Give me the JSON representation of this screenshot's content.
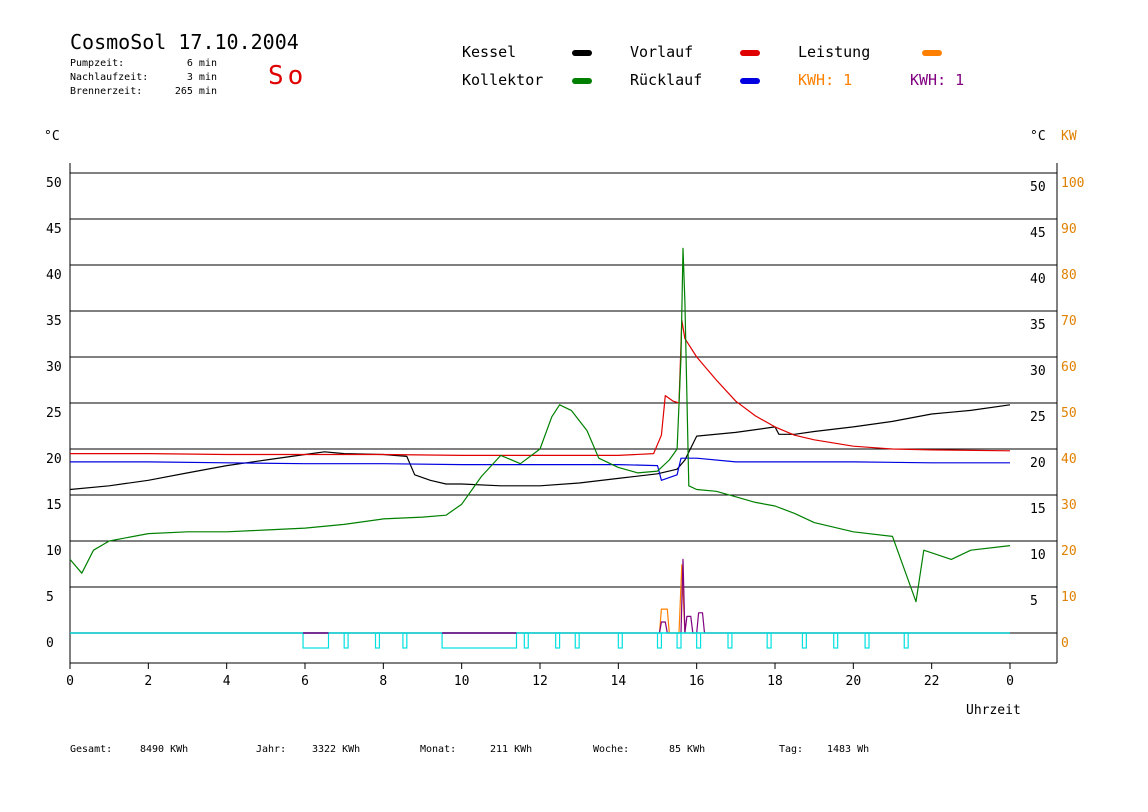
{
  "header": {
    "title": "CosmoSol 17.10.2004",
    "day": "So",
    "stats": [
      {
        "label": "Pumpzeit:",
        "value": "6 min"
      },
      {
        "label": "Nachlaufzeit:",
        "value": "3 min"
      },
      {
        "label": "Brennerzeit:",
        "value": "265 min"
      }
    ]
  },
  "legend": {
    "kessel": "Kessel",
    "kollektor": "Kollektor",
    "vorlauf": "Vorlauf",
    "ruecklauf": "Rücklauf",
    "leistung": "Leistung",
    "kwh_orange": "KWH: 1",
    "kwh_purple": "KWH: 1"
  },
  "colors": {
    "kessel": "#000000",
    "kollektor": "#008000",
    "vorlauf": "#e00000",
    "ruecklauf": "#0000e0",
    "leistung": "#ff8000",
    "kwh_purple": "#800080",
    "pump": "#00e0e0"
  },
  "footer": [
    {
      "label": "Gesamt:",
      "value": "8490 KWh"
    },
    {
      "label": "Jahr:",
      "value": "3322 KWh"
    },
    {
      "label": "Monat:",
      "value": "211 KWh"
    },
    {
      "label": "Woche:",
      "value": "85 KWh"
    },
    {
      "label": "Tag:",
      "value": "1483 Wh"
    }
  ],
  "chart_data": {
    "type": "line",
    "title": "CosmoSol 17.10.2004",
    "xlabel": "Uhrzeit",
    "ylabel_left": "°C",
    "ylabel_right": "°C",
    "ylabel_right2": "KW",
    "xlim": [
      0,
      24
    ],
    "ylim": [
      0,
      50
    ],
    "y2lim": [
      0,
      100
    ],
    "x_ticks": [
      "0",
      "2",
      "4",
      "6",
      "8",
      "10",
      "12",
      "14",
      "16",
      "18",
      "20",
      "22",
      "0"
    ],
    "y_ticks": [
      0,
      5,
      10,
      15,
      20,
      25,
      30,
      35,
      40,
      45,
      50
    ],
    "y2_ticks": [
      0,
      10,
      20,
      30,
      40,
      50,
      60,
      70,
      80,
      90,
      100
    ],
    "grid": true,
    "series": [
      {
        "name": "Kessel",
        "color": "#000000",
        "points": [
          [
            0,
            15.6
          ],
          [
            1,
            16
          ],
          [
            2,
            16.6
          ],
          [
            3,
            17.4
          ],
          [
            4,
            18.2
          ],
          [
            5,
            18.8
          ],
          [
            6,
            19.4
          ],
          [
            6.5,
            19.7
          ],
          [
            7,
            19.5
          ],
          [
            8,
            19.4
          ],
          [
            8.6,
            19.2
          ],
          [
            8.8,
            17.2
          ],
          [
            9.2,
            16.6
          ],
          [
            9.6,
            16.2
          ],
          [
            10,
            16.2
          ],
          [
            11,
            16
          ],
          [
            12,
            16
          ],
          [
            13,
            16.3
          ],
          [
            14,
            16.8
          ],
          [
            15,
            17.3
          ],
          [
            15.5,
            17.8
          ],
          [
            15.7,
            18.8
          ],
          [
            16,
            21.4
          ],
          [
            17,
            21.8
          ],
          [
            18,
            22.4
          ],
          [
            18.1,
            21.6
          ],
          [
            18.5,
            21.6
          ],
          [
            19,
            21.9
          ],
          [
            20,
            22.4
          ],
          [
            21,
            23
          ],
          [
            22,
            23.8
          ],
          [
            22.5,
            24
          ],
          [
            23,
            24.2
          ],
          [
            24,
            24.8
          ]
        ]
      },
      {
        "name": "Vorlauf",
        "color": "#e00000",
        "points": [
          [
            0,
            19.5
          ],
          [
            2,
            19.5
          ],
          [
            4,
            19.4
          ],
          [
            6,
            19.4
          ],
          [
            8,
            19.4
          ],
          [
            10,
            19.3
          ],
          [
            12,
            19.3
          ],
          [
            14,
            19.3
          ],
          [
            14.9,
            19.5
          ],
          [
            15.1,
            21.5
          ],
          [
            15.2,
            25.8
          ],
          [
            15.4,
            25.2
          ],
          [
            15.55,
            25
          ],
          [
            15.62,
            34
          ],
          [
            15.7,
            32
          ],
          [
            16,
            30
          ],
          [
            16.5,
            27.5
          ],
          [
            17,
            25.2
          ],
          [
            17.5,
            23.6
          ],
          [
            18,
            22.4
          ],
          [
            18.5,
            21.5
          ],
          [
            19,
            21
          ],
          [
            20,
            20.3
          ],
          [
            21,
            20
          ],
          [
            22,
            19.9
          ],
          [
            24,
            19.8
          ]
        ]
      },
      {
        "name": "Rücklauf",
        "color": "#0000e0",
        "points": [
          [
            0,
            18.6
          ],
          [
            2,
            18.6
          ],
          [
            4,
            18.5
          ],
          [
            6,
            18.4
          ],
          [
            8,
            18.4
          ],
          [
            10,
            18.3
          ],
          [
            12,
            18.3
          ],
          [
            14,
            18.3
          ],
          [
            15,
            18.2
          ],
          [
            15.1,
            16.6
          ],
          [
            15.5,
            17.2
          ],
          [
            15.6,
            19
          ],
          [
            16,
            19
          ],
          [
            17,
            18.6
          ],
          [
            18,
            18.6
          ],
          [
            20,
            18.6
          ],
          [
            22,
            18.5
          ],
          [
            24,
            18.5
          ]
        ]
      },
      {
        "name": "Kollektor",
        "color": "#008000",
        "points": [
          [
            0,
            8
          ],
          [
            0.3,
            6.5
          ],
          [
            0.6,
            9
          ],
          [
            1,
            10
          ],
          [
            2,
            10.8
          ],
          [
            3,
            11
          ],
          [
            4,
            11
          ],
          [
            5,
            11.2
          ],
          [
            6,
            11.4
          ],
          [
            7,
            11.8
          ],
          [
            8,
            12.4
          ],
          [
            9,
            12.6
          ],
          [
            9.6,
            12.8
          ],
          [
            10,
            14
          ],
          [
            10.5,
            17
          ],
          [
            11,
            19.3
          ],
          [
            11.5,
            18.4
          ],
          [
            12,
            20
          ],
          [
            12.3,
            23.5
          ],
          [
            12.5,
            24.8
          ],
          [
            12.8,
            24.2
          ],
          [
            13.2,
            22
          ],
          [
            13.5,
            19
          ],
          [
            14,
            18
          ],
          [
            14.5,
            17.4
          ],
          [
            15,
            17.6
          ],
          [
            15.3,
            18.8
          ],
          [
            15.5,
            20
          ],
          [
            15.6,
            30
          ],
          [
            15.65,
            41.8
          ],
          [
            15.7,
            36
          ],
          [
            15.8,
            16
          ],
          [
            16,
            15.6
          ],
          [
            16.5,
            15.4
          ],
          [
            17,
            14.8
          ],
          [
            17.5,
            14.2
          ],
          [
            18,
            13.8
          ],
          [
            18.5,
            13
          ],
          [
            19,
            12
          ],
          [
            20,
            11
          ],
          [
            21,
            10.5
          ],
          [
            21.6,
            3.4
          ],
          [
            21.8,
            9
          ],
          [
            22.5,
            8
          ],
          [
            23,
            9
          ],
          [
            24,
            9.5
          ]
        ]
      },
      {
        "name": "Leistung",
        "color": "#ff8000",
        "points": [
          [
            0,
            0
          ],
          [
            15.05,
            0
          ],
          [
            15.1,
            2.6
          ],
          [
            15.25,
            2.6
          ],
          [
            15.3,
            0
          ],
          [
            15.55,
            0
          ],
          [
            15.62,
            7.4
          ],
          [
            15.7,
            0
          ],
          [
            24,
            0
          ]
        ]
      },
      {
        "name": "KWH",
        "color": "#800080",
        "points": [
          [
            0,
            0
          ],
          [
            15.05,
            0
          ],
          [
            15.1,
            1.2
          ],
          [
            15.2,
            1.2
          ],
          [
            15.25,
            0
          ],
          [
            15.6,
            0
          ],
          [
            15.65,
            8
          ],
          [
            15.7,
            0
          ],
          [
            15.75,
            1.8
          ],
          [
            15.85,
            1.8
          ],
          [
            15.9,
            0
          ],
          [
            16.0,
            0
          ],
          [
            16.05,
            2.2
          ],
          [
            16.15,
            2.2
          ],
          [
            16.2,
            0
          ],
          [
            24,
            0
          ]
        ]
      }
    ],
    "pump_blocks": [
      [
        5.95,
        6.6
      ],
      [
        7.0,
        7.1
      ],
      [
        7.8,
        7.9
      ],
      [
        8.5,
        8.6
      ],
      [
        9.5,
        11.4
      ],
      [
        11.6,
        11.7
      ],
      [
        12.4,
        12.5
      ],
      [
        12.9,
        13.0
      ],
      [
        14.0,
        14.1
      ],
      [
        15.0,
        15.1
      ],
      [
        15.5,
        15.6
      ],
      [
        16.0,
        16.1
      ],
      [
        16.8,
        16.9
      ],
      [
        17.8,
        17.9
      ],
      [
        18.7,
        18.8
      ],
      [
        19.5,
        19.6
      ],
      [
        20.3,
        20.4
      ],
      [
        21.3,
        21.4
      ]
    ]
  }
}
